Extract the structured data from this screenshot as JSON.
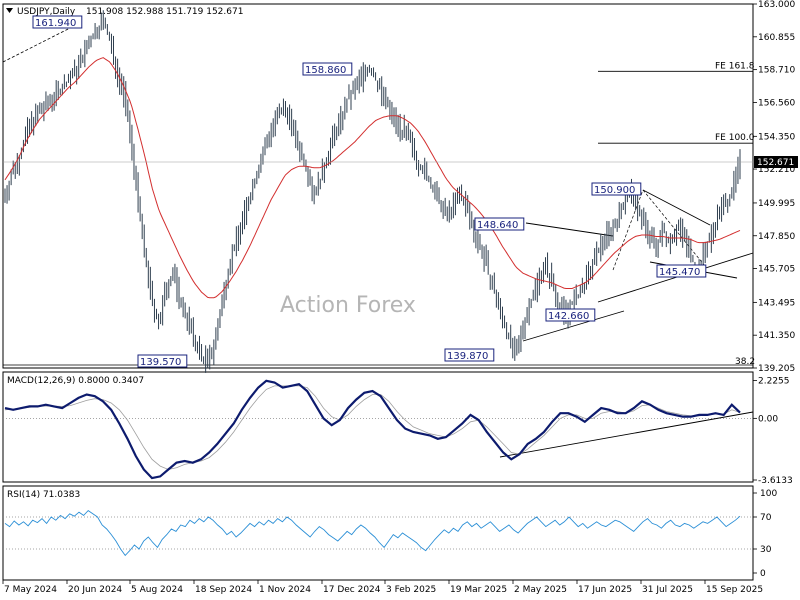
{
  "header": {
    "symbol": "USDJPY,Daily",
    "ohlc": "151.908 152.988 151.719 152.671"
  },
  "watermark": "Action Forex",
  "colors": {
    "candles": "#2f3f4f",
    "ma": "#d32f2f",
    "macd_line": "#0d1b6e",
    "macd_signal": "#9e9e9e",
    "rsi": "#2b8fd6",
    "level_lines": "#000000"
  },
  "chart_data": [
    {
      "type": "line",
      "panel": "price",
      "title": "USDJPY,Daily",
      "y_ticks": [
        163.0,
        160.855,
        158.71,
        156.56,
        154.35,
        152.21,
        149.995,
        147.85,
        145.705,
        143.495,
        141.35,
        139.205
      ],
      "last_price": "152.671",
      "x_ticks": [
        "7 May 2024",
        "20 Jun 2024",
        "5 Aug 2024",
        "18 Sep 2024",
        "1 Nov 2024",
        "17 Dec 2024",
        "3 Feb 2025",
        "19 Mar 2025",
        "2 May 2025",
        "17 Jun 2025",
        "31 Jul 2025",
        "15 Sep 2025"
      ],
      "annotations": [
        "161.940",
        "158.860",
        "139.570",
        "148.640",
        "139.870",
        "142.660",
        "150.900",
        "145.470"
      ],
      "levels": [
        {
          "label": "FE 161.8",
          "value": 158.6
        },
        {
          "label": "FE 100.0",
          "value": 153.9
        }
      ],
      "fib_label": "38.2",
      "series": [
        {
          "values": [
            150.5,
            152.0,
            153.0,
            154.5,
            155.5,
            156.0,
            156.5,
            157.0,
            157.5,
            158.0,
            158.6,
            159.5,
            160.5,
            161.3,
            161.94,
            160.5,
            158.5,
            157.0,
            154.0,
            150.0,
            146.5,
            143.5,
            142.0,
            144.5,
            145.5,
            143.5,
            142.5,
            141.0,
            140.0,
            139.57,
            141.0,
            143.5,
            146.0,
            147.5,
            149.0,
            150.5,
            152.0,
            153.5,
            154.8,
            155.7,
            156.3,
            155.0,
            153.5,
            152.5,
            150.5,
            151.5,
            153.0,
            154.5,
            155.5,
            156.8,
            157.5,
            158.4,
            158.86,
            158.0,
            157.0,
            156.0,
            155.2,
            154.5,
            154.0,
            152.5,
            152.0,
            151.0,
            150.0,
            149.2,
            149.8,
            150.6,
            149.6,
            148.0,
            147.0,
            145.5,
            144.0,
            142.5,
            141.2,
            139.87,
            142.0,
            143.5,
            144.8,
            146.0,
            145.0,
            143.5,
            142.66,
            143.5,
            144.0,
            145.0,
            146.0,
            147.2,
            148.0,
            148.5,
            149.5,
            150.9,
            150.0,
            149.0,
            147.8,
            147.2,
            148.2,
            147.5,
            148.5,
            147.8,
            146.5,
            145.47,
            147.0,
            148.0,
            149.5,
            150.0,
            151.0,
            152.671
          ]
        },
        {
          "name": "",
          "values": [
            151.5,
            152.2,
            153.0,
            154.0,
            154.8,
            155.5,
            156.0,
            156.5,
            157.0,
            157.5,
            157.9,
            158.4,
            158.9,
            159.3,
            159.5,
            159.2,
            158.5,
            157.6,
            156.5,
            154.8,
            153.0,
            151.0,
            149.5,
            148.5,
            147.5,
            146.5,
            145.6,
            144.8,
            144.2,
            143.8,
            143.8,
            144.2,
            144.8,
            145.5,
            146.3,
            147.2,
            148.2,
            149.2,
            150.2,
            151.0,
            151.8,
            152.2,
            152.4,
            152.4,
            152.3,
            152.3,
            152.5,
            152.8,
            153.2,
            153.6,
            154.0,
            154.5,
            155.0,
            155.4,
            155.6,
            155.7,
            155.7,
            155.5,
            155.2,
            154.7,
            154.0,
            153.2,
            152.4,
            151.6,
            151.0,
            150.6,
            150.2,
            149.8,
            149.3,
            148.7,
            148.0,
            147.2,
            146.5,
            145.8,
            145.4,
            145.2,
            145.0,
            144.9,
            144.8,
            144.6,
            144.4,
            144.4,
            144.6,
            144.8,
            145.2,
            145.7,
            146.2,
            146.7,
            147.1,
            147.5,
            147.8,
            147.9,
            147.9,
            147.8,
            147.8,
            147.7,
            147.7,
            147.7,
            147.6,
            147.4,
            147.4,
            147.5,
            147.6,
            147.8,
            148.0,
            148.2
          ]
        }
      ]
    },
    {
      "type": "line",
      "panel": "macd",
      "title": "MACD(12,26,9) 0.8000 0.3407",
      "y_ticks": [
        2.2255,
        0.0,
        -3.6133
      ],
      "y_range": [
        -3.6133,
        2.6
      ],
      "series": [
        {
          "values": [
            0.6,
            0.5,
            0.6,
            0.7,
            0.7,
            0.8,
            0.7,
            0.6,
            0.9,
            1.2,
            1.4,
            1.3,
            1.0,
            0.5,
            -0.3,
            -1.2,
            -2.2,
            -3.0,
            -3.5,
            -3.4,
            -3.0,
            -2.6,
            -2.5,
            -2.6,
            -2.4,
            -2.0,
            -1.5,
            -0.9,
            -0.3,
            0.5,
            1.2,
            1.8,
            2.2,
            2.1,
            1.8,
            1.9,
            2.0,
            1.6,
            0.8,
            0.0,
            -0.4,
            -0.1,
            0.6,
            1.1,
            1.5,
            1.6,
            1.3,
            0.6,
            -0.1,
            -0.6,
            -0.8,
            -0.9,
            -1.0,
            -1.2,
            -1.1,
            -0.7,
            -0.3,
            0.2,
            -0.1,
            -0.8,
            -1.4,
            -2.0,
            -2.4,
            -2.1,
            -1.5,
            -1.2,
            -0.8,
            -0.2,
            0.3,
            0.3,
            0.1,
            -0.2,
            0.2,
            0.6,
            0.5,
            0.3,
            0.3,
            0.6,
            1.0,
            0.8,
            0.5,
            0.3,
            0.2,
            0.1,
            0.1,
            0.2,
            0.2,
            0.3,
            0.2,
            0.8,
            0.34
          ]
        },
        {
          "values": [
            0.5,
            0.55,
            0.6,
            0.65,
            0.7,
            0.72,
            0.72,
            0.7,
            0.75,
            0.9,
            1.05,
            1.15,
            1.1,
            0.9,
            0.5,
            -0.1,
            -0.9,
            -1.7,
            -2.4,
            -2.8,
            -3.0,
            -2.9,
            -2.7,
            -2.6,
            -2.5,
            -2.3,
            -1.9,
            -1.4,
            -0.8,
            -0.1,
            0.6,
            1.2,
            1.7,
            1.9,
            1.9,
            1.9,
            1.9,
            1.8,
            1.3,
            0.6,
            0.1,
            -0.1,
            0.2,
            0.7,
            1.1,
            1.4,
            1.4,
            1.0,
            0.4,
            -0.1,
            -0.5,
            -0.7,
            -0.9,
            -1.0,
            -1.1,
            -0.9,
            -0.6,
            -0.2,
            -0.1,
            -0.5,
            -1.0,
            -1.5,
            -2.0,
            -2.1,
            -1.8,
            -1.4,
            -1.0,
            -0.5,
            0.0,
            0.2,
            0.2,
            0.0,
            0.0,
            0.3,
            0.4,
            0.4,
            0.3,
            0.45,
            0.75,
            0.8,
            0.6,
            0.4,
            0.3,
            0.2,
            0.15,
            0.15,
            0.2,
            0.25,
            0.25,
            0.5,
            0.3407
          ]
        }
      ]
    },
    {
      "type": "line",
      "panel": "rsi",
      "title": "RSI(14) 71.0383",
      "y_ticks": [
        100,
        70,
        30,
        0
      ],
      "y_range": [
        0,
        100
      ],
      "levels": [
        70,
        30
      ],
      "series": [
        {
          "values": [
            62,
            58,
            65,
            60,
            64,
            59,
            66,
            63,
            68,
            62,
            70,
            66,
            72,
            68,
            74,
            71,
            76,
            72,
            78,
            74,
            70,
            60,
            55,
            48,
            40,
            30,
            22,
            28,
            35,
            30,
            40,
            45,
            38,
            32,
            42,
            48,
            55,
            52,
            60,
            58,
            66,
            62,
            68,
            64,
            70,
            66,
            60,
            55,
            48,
            52,
            45,
            50,
            56,
            62,
            58,
            64,
            60,
            66,
            62,
            68,
            64,
            70,
            66,
            60,
            55,
            50,
            45,
            52,
            58,
            54,
            48,
            44,
            40,
            46,
            52,
            48,
            55,
            60,
            56,
            50,
            45,
            38,
            32,
            40,
            48,
            44,
            50,
            46,
            42,
            38,
            32,
            28,
            35,
            42,
            48,
            54,
            50,
            56,
            52,
            60,
            64,
            58,
            62,
            56,
            60,
            64,
            58,
            52,
            56,
            60,
            54,
            50,
            56,
            62,
            66,
            70,
            64,
            58,
            62,
            66,
            60,
            64,
            70,
            64,
            58,
            62,
            56,
            60,
            64,
            60,
            58,
            62,
            66,
            64,
            60,
            56,
            52,
            58,
            64,
            68,
            62,
            60,
            56,
            62,
            66,
            60,
            58,
            62,
            60,
            56,
            60,
            64,
            62,
            66,
            70,
            64,
            58,
            62,
            66,
            71.04
          ]
        }
      ]
    }
  ]
}
